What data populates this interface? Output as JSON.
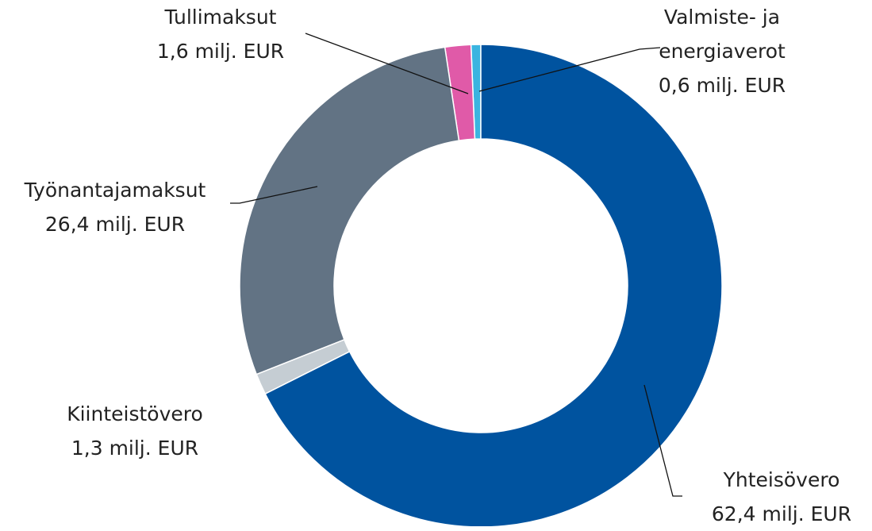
{
  "chart_data": {
    "type": "donut",
    "categories": [
      "Yhteisövero",
      "Kiinteistövero",
      "Työnantajamaksut",
      "Tullimaksut",
      "Valmiste- ja energiaverot"
    ],
    "values": [
      62.4,
      1.3,
      26.4,
      1.6,
      0.6
    ],
    "value_labels": [
      "62,4 milj. EUR",
      "1,3 milj. EUR",
      "26,4 milj. EUR",
      "1,6 milj. EUR",
      "0,6 milj. EUR"
    ],
    "colors": [
      "#00539f",
      "#c5cdd3",
      "#627384",
      "#e05aa8",
      "#3bb4e0"
    ]
  }
}
